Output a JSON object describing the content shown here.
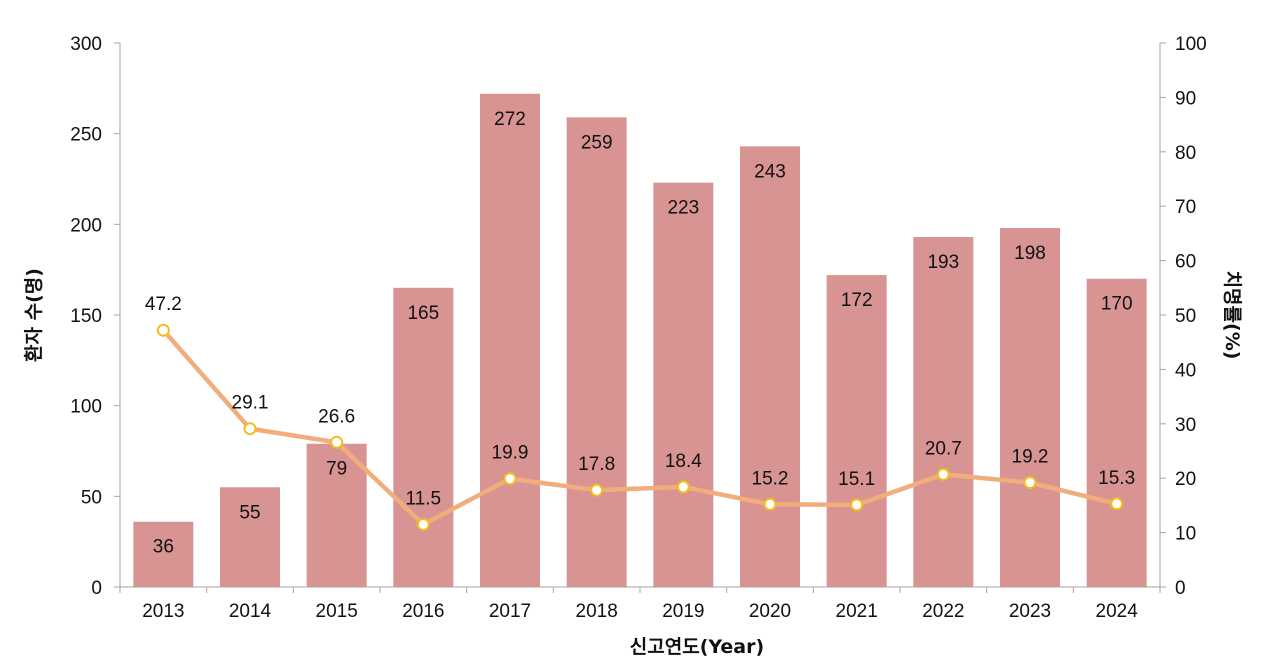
{
  "chart_data": {
    "type": "bar",
    "categories": [
      "2013",
      "2014",
      "2015",
      "2016",
      "2017",
      "2018",
      "2019",
      "2020",
      "2021",
      "2022",
      "2023",
      "2024"
    ],
    "series": [
      {
        "type": "bar",
        "axis": "left",
        "color": "#d89493",
        "values": [
          36,
          55,
          79,
          165,
          272,
          259,
          223,
          243,
          172,
          193,
          198,
          170
        ]
      },
      {
        "type": "line",
        "axis": "right",
        "color": "#f1ad7c",
        "marker_stroke": "#f2be1d",
        "values": [
          47.2,
          29.1,
          26.6,
          11.5,
          19.9,
          17.8,
          18.4,
          15.2,
          15.1,
          20.7,
          19.2,
          15.3
        ]
      }
    ],
    "xlabel": "신고연도(Year)",
    "ylabel": "환자 수(명)",
    "y2label": "치명률(%)",
    "ylim": [
      0,
      300
    ],
    "yticks": [
      0,
      50,
      100,
      150,
      200,
      250,
      300
    ],
    "y2lim": [
      0,
      100
    ],
    "y2ticks": [
      0,
      10,
      20,
      30,
      40,
      50,
      60,
      70,
      80,
      90,
      100
    ],
    "grid": false,
    "legend": "none"
  }
}
